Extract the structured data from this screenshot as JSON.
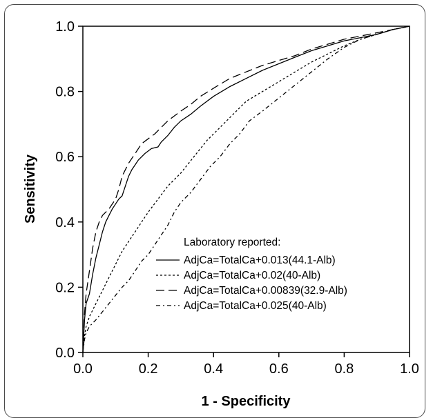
{
  "chart_data": {
    "type": "line",
    "title": "",
    "xlabel": "1 - Specificity",
    "ylabel": "Sensitivity",
    "xlim": [
      0.0,
      1.0
    ],
    "ylim": [
      0.0,
      1.0
    ],
    "x_ticks": [
      "0.0",
      "0.2",
      "0.4",
      "0.6",
      "0.8",
      "1.0"
    ],
    "y_ticks": [
      "0.0",
      "0.2",
      "0.4",
      "0.6",
      "0.8",
      "1.0"
    ],
    "grid": false,
    "legend_position": "bottom-right",
    "legend_header": "Laboratory reported:",
    "series": [
      {
        "name": "AdjCa=TotalCa+0.013(44.1-Alb)",
        "dash": "solid",
        "color": "#000000",
        "points": [
          [
            0,
            0
          ],
          [
            0.005,
            0.1
          ],
          [
            0.01,
            0.15
          ],
          [
            0.02,
            0.18
          ],
          [
            0.03,
            0.24
          ],
          [
            0.04,
            0.29
          ],
          [
            0.05,
            0.33
          ],
          [
            0.06,
            0.37
          ],
          [
            0.07,
            0.4
          ],
          [
            0.08,
            0.42
          ],
          [
            0.09,
            0.44
          ],
          [
            0.1,
            0.455
          ],
          [
            0.11,
            0.47
          ],
          [
            0.12,
            0.48
          ],
          [
            0.13,
            0.51
          ],
          [
            0.14,
            0.54
          ],
          [
            0.15,
            0.56
          ],
          [
            0.17,
            0.59
          ],
          [
            0.19,
            0.61
          ],
          [
            0.21,
            0.625
          ],
          [
            0.23,
            0.63
          ],
          [
            0.24,
            0.645
          ],
          [
            0.26,
            0.665
          ],
          [
            0.28,
            0.69
          ],
          [
            0.3,
            0.71
          ],
          [
            0.33,
            0.73
          ],
          [
            0.36,
            0.755
          ],
          [
            0.4,
            0.785
          ],
          [
            0.45,
            0.815
          ],
          [
            0.5,
            0.84
          ],
          [
            0.55,
            0.865
          ],
          [
            0.6,
            0.885
          ],
          [
            0.65,
            0.905
          ],
          [
            0.7,
            0.925
          ],
          [
            0.75,
            0.94
          ],
          [
            0.8,
            0.955
          ],
          [
            0.85,
            0.965
          ],
          [
            0.9,
            0.975
          ],
          [
            0.95,
            0.99
          ],
          [
            1.0,
            1.0
          ]
        ]
      },
      {
        "name": "AdjCa=TotalCa+0.02(40-Alb)",
        "dash": "dotted",
        "color": "#000000",
        "points": [
          [
            0,
            0
          ],
          [
            0.005,
            0.05
          ],
          [
            0.01,
            0.08
          ],
          [
            0.02,
            0.11
          ],
          [
            0.04,
            0.15
          ],
          [
            0.06,
            0.19
          ],
          [
            0.08,
            0.23
          ],
          [
            0.1,
            0.27
          ],
          [
            0.12,
            0.31
          ],
          [
            0.14,
            0.34
          ],
          [
            0.16,
            0.37
          ],
          [
            0.18,
            0.4
          ],
          [
            0.2,
            0.43
          ],
          [
            0.23,
            0.47
          ],
          [
            0.26,
            0.51
          ],
          [
            0.3,
            0.55
          ],
          [
            0.34,
            0.6
          ],
          [
            0.38,
            0.65
          ],
          [
            0.42,
            0.69
          ],
          [
            0.46,
            0.73
          ],
          [
            0.5,
            0.77
          ],
          [
            0.55,
            0.8
          ],
          [
            0.6,
            0.83
          ],
          [
            0.65,
            0.86
          ],
          [
            0.7,
            0.89
          ],
          [
            0.75,
            0.915
          ],
          [
            0.8,
            0.94
          ],
          [
            0.85,
            0.96
          ],
          [
            0.9,
            0.975
          ],
          [
            0.95,
            0.99
          ],
          [
            1.0,
            1.0
          ]
        ]
      },
      {
        "name": "AdjCa=TotalCa+0.00839(32.9-Alb)",
        "dash": "long-dash",
        "color": "#000000",
        "points": [
          [
            0,
            0
          ],
          [
            0.005,
            0.12
          ],
          [
            0.01,
            0.18
          ],
          [
            0.02,
            0.25
          ],
          [
            0.03,
            0.32
          ],
          [
            0.04,
            0.37
          ],
          [
            0.05,
            0.4
          ],
          [
            0.06,
            0.42
          ],
          [
            0.08,
            0.44
          ],
          [
            0.1,
            0.47
          ],
          [
            0.11,
            0.5
          ],
          [
            0.12,
            0.54
          ],
          [
            0.13,
            0.56
          ],
          [
            0.14,
            0.58
          ],
          [
            0.16,
            0.61
          ],
          [
            0.18,
            0.64
          ],
          [
            0.2,
            0.655
          ],
          [
            0.22,
            0.67
          ],
          [
            0.24,
            0.69
          ],
          [
            0.26,
            0.71
          ],
          [
            0.28,
            0.725
          ],
          [
            0.3,
            0.74
          ],
          [
            0.33,
            0.76
          ],
          [
            0.36,
            0.785
          ],
          [
            0.4,
            0.81
          ],
          [
            0.45,
            0.84
          ],
          [
            0.5,
            0.86
          ],
          [
            0.55,
            0.88
          ],
          [
            0.6,
            0.895
          ],
          [
            0.65,
            0.91
          ],
          [
            0.7,
            0.93
          ],
          [
            0.75,
            0.945
          ],
          [
            0.8,
            0.96
          ],
          [
            0.85,
            0.97
          ],
          [
            0.9,
            0.98
          ],
          [
            0.95,
            0.99
          ],
          [
            1.0,
            1.0
          ]
        ]
      },
      {
        "name": "AdjCa=TotalCa+0.025(40-Alb)",
        "dash": "dash-dot",
        "color": "#000000",
        "points": [
          [
            0,
            0
          ],
          [
            0.005,
            0.04
          ],
          [
            0.01,
            0.06
          ],
          [
            0.02,
            0.08
          ],
          [
            0.04,
            0.1
          ],
          [
            0.06,
            0.125
          ],
          [
            0.08,
            0.15
          ],
          [
            0.1,
            0.175
          ],
          [
            0.12,
            0.2
          ],
          [
            0.14,
            0.22
          ],
          [
            0.16,
            0.25
          ],
          [
            0.18,
            0.28
          ],
          [
            0.2,
            0.3
          ],
          [
            0.22,
            0.33
          ],
          [
            0.24,
            0.36
          ],
          [
            0.26,
            0.39
          ],
          [
            0.28,
            0.43
          ],
          [
            0.3,
            0.46
          ],
          [
            0.33,
            0.49
          ],
          [
            0.36,
            0.53
          ],
          [
            0.39,
            0.57
          ],
          [
            0.42,
            0.6
          ],
          [
            0.45,
            0.64
          ],
          [
            0.48,
            0.67
          ],
          [
            0.51,
            0.71
          ],
          [
            0.55,
            0.74
          ],
          [
            0.6,
            0.78
          ],
          [
            0.65,
            0.82
          ],
          [
            0.7,
            0.86
          ],
          [
            0.75,
            0.9
          ],
          [
            0.8,
            0.935
          ],
          [
            0.85,
            0.96
          ],
          [
            0.9,
            0.975
          ],
          [
            0.95,
            0.99
          ],
          [
            1.0,
            1.0
          ]
        ]
      }
    ]
  }
}
